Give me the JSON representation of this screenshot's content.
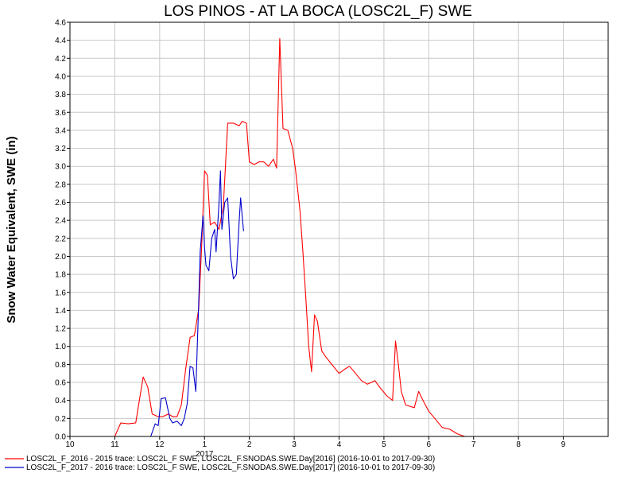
{
  "chart_data": {
    "type": "line",
    "title": "LOS PINOS - AT LA BOCA (LOSC2L_F) SWE",
    "ylabel": "Snow Water Equivalent, SWE (in)",
    "xlabel": "",
    "year_label": "2017",
    "xlim": [
      "10",
      "9"
    ],
    "ylim": [
      0.0,
      4.6
    ],
    "y_ticks": [
      "0.0",
      "0.2",
      "0.4",
      "0.6",
      "0.8",
      "1.0",
      "1.2",
      "1.4",
      "1.6",
      "1.8",
      "2.0",
      "2.2",
      "2.4",
      "2.6",
      "2.8",
      "3.0",
      "3.2",
      "3.4",
      "3.6",
      "3.8",
      "4.0",
      "4.2",
      "4.4",
      "4.6"
    ],
    "x_ticks": [
      "10",
      "11",
      "12",
      "1",
      "2",
      "3",
      "4",
      "5",
      "6",
      "7",
      "8",
      "9"
    ],
    "grid": true,
    "legend_position": "bottom",
    "series": [
      {
        "name": "LOSC2L_F_2016 - 2015 trace: LOSC2L_F SWE, LOSC2L_F.SNODAS.SWE.Day[2016] (2016-10-01 to 2017-09-30)",
        "color": "#ff0000",
        "points": [
          [
            "11/01",
            0.0
          ],
          [
            "11/05",
            0.15
          ],
          [
            "11/10",
            0.14
          ],
          [
            "11/15",
            0.15
          ],
          [
            "11/20",
            0.66
          ],
          [
            "11/23",
            0.55
          ],
          [
            "11/26",
            0.25
          ],
          [
            "11/30",
            0.22
          ],
          [
            "12/03",
            0.22
          ],
          [
            "12/07",
            0.25
          ],
          [
            "12/10",
            0.22
          ],
          [
            "12/13",
            0.22
          ],
          [
            "12/16",
            0.35
          ],
          [
            "12/19",
            0.75
          ],
          [
            "12/22",
            1.1
          ],
          [
            "12/25",
            1.12
          ],
          [
            "12/28",
            1.42
          ],
          [
            "12/30",
            2.1
          ],
          [
            "01/01",
            2.95
          ],
          [
            "01/03",
            2.9
          ],
          [
            "01/05",
            2.35
          ],
          [
            "01/08",
            2.38
          ],
          [
            "01/11",
            2.3
          ],
          [
            "01/14",
            2.55
          ],
          [
            "01/17",
            3.48
          ],
          [
            "01/21",
            3.48
          ],
          [
            "01/25",
            3.45
          ],
          [
            "01/27",
            3.5
          ],
          [
            "01/30",
            3.48
          ],
          [
            "02/01",
            3.05
          ],
          [
            "02/04",
            3.02
          ],
          [
            "02/07",
            3.05
          ],
          [
            "02/10",
            3.05
          ],
          [
            "02/13",
            3.0
          ],
          [
            "02/16",
            3.08
          ],
          [
            "02/18",
            2.98
          ],
          [
            "02/20",
            4.42
          ],
          [
            "02/22",
            3.42
          ],
          [
            "02/25",
            3.4
          ],
          [
            "02/28",
            3.2
          ],
          [
            "03/02",
            2.95
          ],
          [
            "03/05",
            2.5
          ],
          [
            "03/07",
            2.05
          ],
          [
            "03/09",
            1.55
          ],
          [
            "03/11",
            1.0
          ],
          [
            "03/13",
            0.72
          ],
          [
            "03/15",
            1.35
          ],
          [
            "03/17",
            1.28
          ],
          [
            "03/20",
            0.95
          ],
          [
            "03/23",
            0.88
          ],
          [
            "03/27",
            0.8
          ],
          [
            "04/01",
            0.7
          ],
          [
            "04/05",
            0.75
          ],
          [
            "04/08",
            0.78
          ],
          [
            "04/12",
            0.7
          ],
          [
            "04/16",
            0.62
          ],
          [
            "04/20",
            0.58
          ],
          [
            "04/25",
            0.62
          ],
          [
            "04/28",
            0.55
          ],
          [
            "05/03",
            0.45
          ],
          [
            "05/07",
            0.4
          ],
          [
            "05/09",
            1.06
          ],
          [
            "05/11",
            0.8
          ],
          [
            "05/13",
            0.5
          ],
          [
            "05/16",
            0.35
          ],
          [
            "05/22",
            0.32
          ],
          [
            "05/25",
            0.5
          ],
          [
            "05/28",
            0.4
          ],
          [
            "06/01",
            0.28
          ],
          [
            "06/05",
            0.2
          ],
          [
            "06/10",
            0.1
          ],
          [
            "06/15",
            0.08
          ],
          [
            "06/20",
            0.03
          ],
          [
            "06/25",
            0.0
          ]
        ]
      },
      {
        "name": "LOSC2L_F_2017 - 2016 trace: LOSC2L_F SWE, LOSC2L_F.SNODAS.SWE.Day[2017] (2016-10-01 to 2017-09-30)",
        "color": "#0000cc",
        "points": [
          [
            "11/25",
            0.0
          ],
          [
            "11/28",
            0.14
          ],
          [
            "11/30",
            0.12
          ],
          [
            "12/02",
            0.42
          ],
          [
            "12/05",
            0.43
          ],
          [
            "12/08",
            0.2
          ],
          [
            "12/10",
            0.15
          ],
          [
            "12/13",
            0.17
          ],
          [
            "12/16",
            0.12
          ],
          [
            "12/18",
            0.2
          ],
          [
            "12/20",
            0.36
          ],
          [
            "12/22",
            0.78
          ],
          [
            "12/24",
            0.76
          ],
          [
            "12/26",
            0.5
          ],
          [
            "12/28",
            1.5
          ],
          [
            "12/29",
            2.05
          ],
          [
            "12/31",
            2.45
          ],
          [
            "01/01",
            2.1
          ],
          [
            "01/02",
            1.9
          ],
          [
            "01/04",
            1.84
          ],
          [
            "01/06",
            2.2
          ],
          [
            "01/08",
            2.3
          ],
          [
            "01/09",
            2.05
          ],
          [
            "01/11",
            2.58
          ],
          [
            "01/12",
            2.95
          ],
          [
            "01/13",
            2.3
          ],
          [
            "01/15",
            2.6
          ],
          [
            "01/17",
            2.65
          ],
          [
            "01/19",
            2.0
          ],
          [
            "01/21",
            1.75
          ],
          [
            "01/23",
            1.8
          ],
          [
            "01/25",
            2.4
          ],
          [
            "01/26",
            2.65
          ],
          [
            "01/27",
            2.45
          ],
          [
            "01/28",
            2.28
          ]
        ]
      }
    ]
  }
}
